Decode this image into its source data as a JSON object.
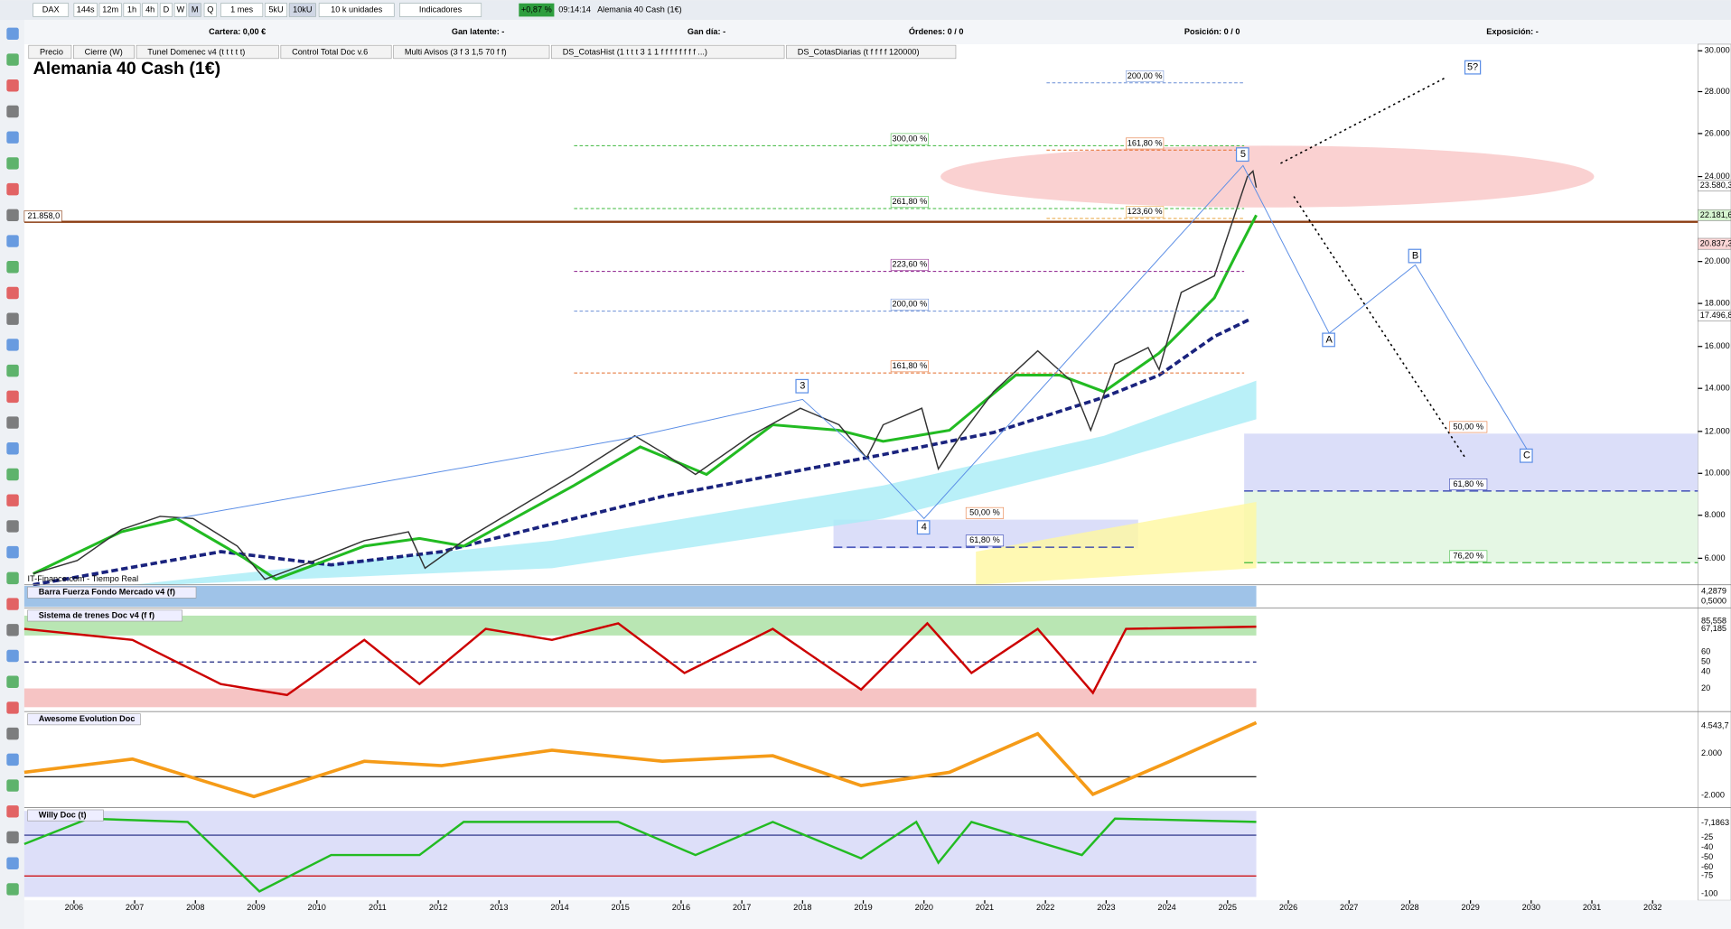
{
  "toolbar": {
    "symbol": "DAX",
    "timeframes": [
      "144s",
      "12m",
      "1h",
      "4h",
      "D",
      "W",
      "M",
      "Q"
    ],
    "period": "1 mes",
    "units": [
      "5kU",
      "10kU"
    ],
    "quantity": "10 k unidades",
    "indicators": "Indicadores",
    "change": "+0,87 %",
    "time": "09:14:14",
    "instrument": "Alemania 40 Cash (1€)"
  },
  "account": [
    "Cartera: 0,00 €",
    "Gan latente: -",
    "Gan día: -",
    "Órdenes: 0 / 0",
    "Posición: 0 / 0",
    "Exposición: -"
  ],
  "indicator_tabs": [
    "Precio",
    "Cierre (W)",
    "Tunel Domenec v4 (t t t t t)",
    "Control Total Doc v.6",
    "Multi Avisos (3 f 3 1,5 70 f f)",
    "DS_CotasHist (1 t t t 3 1 1 f f f f f f f f ...)",
    "DS_CotasDiarias (t f f f f 120000)"
  ],
  "chart": {
    "title": "Alemania 40 Cash (1€)",
    "price_axis": [
      "30.000",
      "28.000",
      "26.000",
      "24.000",
      "20.000",
      "18.000",
      "16.000",
      "14.000",
      "12.000",
      "10.000",
      "8.000",
      "6.000"
    ],
    "price_boxes": [
      "23.580,3",
      "22.181,6",
      "20.837,3",
      "17.496,8"
    ],
    "left_price": "21.858,0",
    "fib_labels": [
      "200,00 %",
      "300,00 %",
      "161,80 %",
      "261,80 %",
      "123,60 %",
      "223,60 %",
      "200,00 %",
      "161,80 %",
      "50,00 %",
      "61,80 %",
      "50,00 %",
      "61,80 %",
      "76,20 %"
    ],
    "waves": [
      "5",
      "3",
      "4",
      "A",
      "B",
      "C",
      "5?"
    ],
    "source": "IT-Finance.com - Tiempo Real"
  },
  "panels": [
    {
      "title": "Barra Fuerza Fondo Mercado v4 (f)",
      "axis": [
        "4,2879",
        "0,5000"
      ]
    },
    {
      "title": "Sistema de trenes Doc v4 (f f)",
      "axis": [
        "85,558",
        "67,185",
        "60",
        "50",
        "40",
        "20"
      ]
    },
    {
      "title": "Awesome Evolution Doc",
      "axis": [
        "4.543,7",
        "2.000",
        "-2.000"
      ]
    },
    {
      "title": "Willy Doc (t)",
      "axis": [
        "-7,1863",
        "-25",
        "-40",
        "-50",
        "-60",
        "-75",
        "-100"
      ]
    }
  ],
  "years": [
    2006,
    2007,
    2008,
    2009,
    2010,
    2011,
    2012,
    2013,
    2014,
    2015,
    2016,
    2017,
    2018,
    2019,
    2020,
    2021,
    2022,
    2023,
    2024,
    2025,
    2026,
    2027,
    2028,
    2029,
    2030,
    2031,
    2032
  ]
}
